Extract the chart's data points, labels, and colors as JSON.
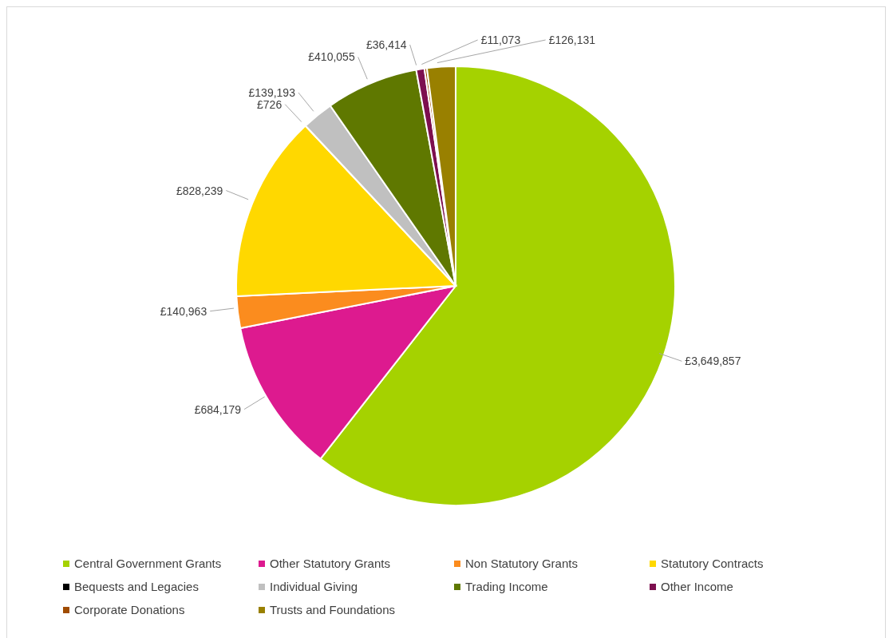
{
  "chart_data": {
    "type": "pie",
    "categories": [
      "Central Government Grants",
      "Other Statutory Grants",
      "Non Statutory Grants",
      "Statutory Contracts",
      "Bequests and Legacies",
      "Individual Giving",
      "Trading Income",
      "Other Income",
      "Corporate Donations",
      "Trusts and Foundations"
    ],
    "values": [
      3649857,
      684179,
      140963,
      828239,
      726,
      139193,
      410055,
      36414,
      11073,
      126131
    ],
    "colors": [
      "#a5d200",
      "#dd1a8f",
      "#fb8c1e",
      "#ffd800",
      "#000000",
      "#c0c0c0",
      "#5f7800",
      "#7d0f4f",
      "#a04c00",
      "#998000"
    ],
    "value_labels": [
      "£3,649,857",
      "£684,179",
      "£140,963",
      "£828,239",
      "£726",
      "£139,193",
      "£410,055",
      "£36,414",
      "£11,073",
      "£126,131"
    ],
    "legend": "bottom"
  }
}
